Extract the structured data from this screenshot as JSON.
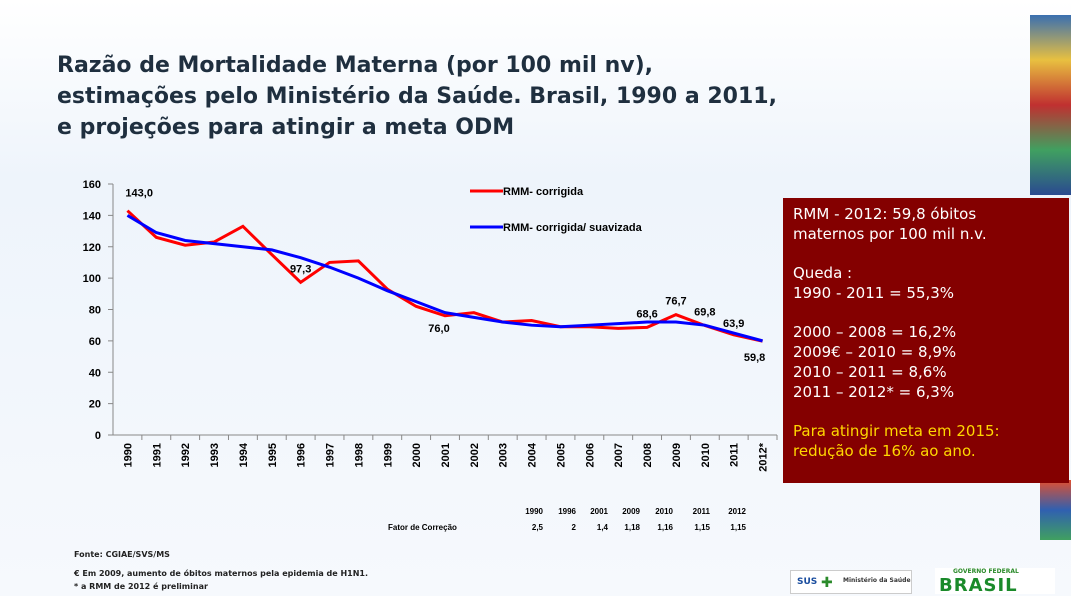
{
  "chart_data": {
    "type": "line",
    "title": "Razão de Mortalidade Materna (por 100 mil nv), estimações pelo Ministério da Saúde. Brasil, 1990 a 2011, e projeções para atingir a meta ODM",
    "categories": [
      "1990",
      "1991",
      "1992",
      "1993",
      "1994",
      "1995",
      "1996",
      "1997",
      "1998",
      "1999",
      "2000",
      "2001",
      "2002",
      "2003",
      "2004",
      "2005",
      "2006",
      "2007",
      "2008",
      "2009",
      "2010",
      "2011",
      "2012*"
    ],
    "series": [
      {
        "name": "RMM- corrigida",
        "color": "#ff0000",
        "values": [
          143.0,
          126,
          121,
          123,
          133,
          115,
          97.3,
          110,
          111,
          93,
          82,
          76.0,
          78,
          72,
          73,
          69,
          69,
          68,
          68.6,
          76.7,
          69.8,
          63.9,
          59.8
        ],
        "value_labels": [
          "143,0",
          null,
          null,
          null,
          null,
          null,
          "97,3",
          null,
          null,
          null,
          null,
          "76,0",
          null,
          null,
          null,
          null,
          null,
          null,
          "68,6",
          "76,7",
          "69,8",
          "63,9",
          "59,8"
        ]
      },
      {
        "name": "RMM- corrigida/ suavizada",
        "color": "#0000ff",
        "values": [
          140,
          129,
          124,
          122,
          120,
          118,
          113,
          107,
          100,
          92,
          85,
          78,
          75,
          72,
          70,
          69,
          70,
          71,
          72,
          72,
          70,
          65,
          60
        ]
      }
    ],
    "ylim": [
      0,
      160
    ],
    "yticks": [
      0,
      20,
      40,
      60,
      80,
      100,
      120,
      140,
      160
    ],
    "grid": false
  },
  "side_box": {
    "paragraphs": [
      [
        "RMM - 2012: 59,8 óbitos",
        "maternos por 100 mil n.v."
      ],
      [
        "Queda :",
        "1990 - 2011 = 55,3%"
      ],
      [
        "2000 – 2008 = 16,2%",
        "2009€ – 2010 = 8,9%",
        "2010 – 2011 = 8,6%",
        "2011 – 2012* = 6,3%"
      ],
      [
        "Para atingir meta em 2015:",
        "redução de 16% ao ano."
      ]
    ]
  },
  "correction_table": {
    "label": "Fator de Correção",
    "years": [
      "1990",
      "1996",
      "2001",
      "2009",
      "2010",
      "2011",
      "2012"
    ],
    "factors": [
      "2,5",
      "2",
      "1,4",
      "1,18",
      "1,16",
      "1,15",
      "1,15"
    ]
  },
  "footnotes": [
    "Fonte: CGIAE/SVS/MS",
    "€ Em 2009, aumento de óbitos maternos pela epidemia de H1N1.",
    "* a RMM de 2012 é preliminar"
  ],
  "logos": [
    "SUS",
    "Ministério da Saúde",
    "GOVERNO FEDERAL",
    "BRASIL"
  ]
}
